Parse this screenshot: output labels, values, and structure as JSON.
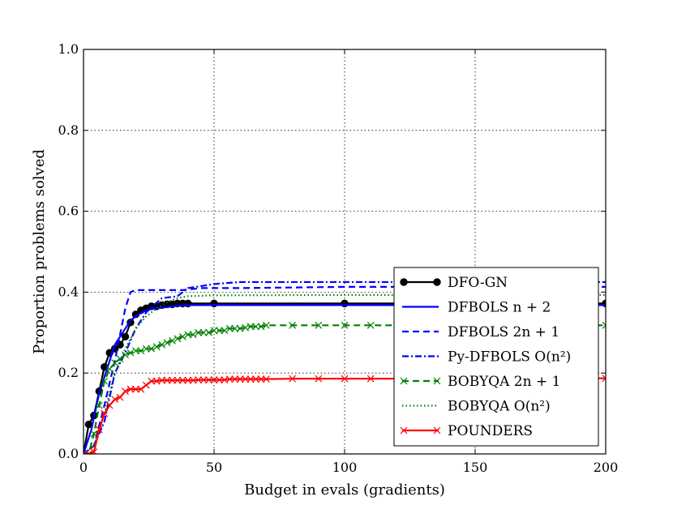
{
  "chart_data": {
    "type": "line",
    "title": "",
    "xlabel": "Budget in evals (gradients)",
    "ylabel": "Proportion problems solved",
    "xlim": [
      0,
      200
    ],
    "ylim": [
      0,
      1.0
    ],
    "x_ticks": [
      "0",
      "50",
      "100",
      "150",
      "200"
    ],
    "y_ticks": [
      "0.0",
      "0.2",
      "0.4",
      "0.6",
      "0.8",
      "1.0"
    ],
    "x_tick_values": [
      0,
      50,
      100,
      150,
      200
    ],
    "y_tick_values": [
      0,
      0.2,
      0.4,
      0.6,
      0.8,
      1.0
    ],
    "grid": true,
    "legend_position": "lower-right",
    "series": [
      {
        "name": "DFO-GN",
        "color": "#000000",
        "style": "solid",
        "marker": "circle",
        "x": [
          0,
          2,
          4,
          6,
          8,
          10,
          12,
          14,
          16,
          18,
          20,
          22,
          24,
          26,
          28,
          30,
          32,
          34,
          36,
          38,
          40,
          50,
          100,
          150,
          200
        ],
        "y": [
          0.0,
          0.073,
          0.095,
          0.155,
          0.215,
          0.25,
          0.26,
          0.27,
          0.29,
          0.325,
          0.345,
          0.355,
          0.36,
          0.365,
          0.365,
          0.368,
          0.37,
          0.37,
          0.372,
          0.372,
          0.372,
          0.372,
          0.372,
          0.372,
          0.372
        ]
      },
      {
        "name": "DFBOLS n+2",
        "color": "#0000ff",
        "style": "solid",
        "marker": "none",
        "x": [
          0,
          3,
          6,
          9,
          12,
          15,
          18,
          21,
          24,
          27,
          30,
          33,
          36,
          39,
          50,
          100,
          150,
          200
        ],
        "y": [
          0.0,
          0.06,
          0.15,
          0.21,
          0.27,
          0.3,
          0.33,
          0.345,
          0.355,
          0.36,
          0.362,
          0.364,
          0.366,
          0.368,
          0.368,
          0.368,
          0.368,
          0.368
        ]
      },
      {
        "name": "DFBOLS 2n+1",
        "color": "#0000ff",
        "style": "dashed",
        "marker": "none",
        "x": [
          0,
          4,
          8,
          12,
          16,
          18,
          20,
          30,
          38,
          45,
          60,
          100,
          150,
          200
        ],
        "y": [
          0.0,
          0.02,
          0.12,
          0.23,
          0.36,
          0.4,
          0.405,
          0.405,
          0.405,
          0.41,
          0.41,
          0.413,
          0.413,
          0.413
        ]
      },
      {
        "name": "Py-DFBOLS O(n^2)",
        "color": "#0000ff",
        "style": "dashdot",
        "marker": "none",
        "x": [
          0,
          4,
          8,
          12,
          16,
          20,
          24,
          30,
          36,
          40,
          45,
          50,
          60,
          100,
          150,
          200
        ],
        "y": [
          0.0,
          0.02,
          0.08,
          0.2,
          0.25,
          0.31,
          0.35,
          0.385,
          0.39,
          0.41,
          0.415,
          0.42,
          0.425,
          0.425,
          0.425,
          0.425
        ]
      },
      {
        "name": "BOBYQA 2n+1",
        "color": "#008000",
        "style": "dashed",
        "marker": "x",
        "x": [
          0,
          2,
          4,
          6,
          8,
          10,
          12,
          14,
          16,
          18,
          20,
          22,
          24,
          26,
          28,
          30,
          32,
          34,
          36,
          38,
          40,
          42,
          44,
          46,
          48,
          50,
          52,
          54,
          56,
          58,
          60,
          62,
          64,
          66,
          68,
          70,
          80,
          90,
          100,
          110,
          120,
          130,
          140,
          150,
          160,
          170,
          180,
          190,
          200
        ],
        "y": [
          0.0,
          0.0,
          0.05,
          0.12,
          0.18,
          0.21,
          0.225,
          0.235,
          0.245,
          0.25,
          0.255,
          0.255,
          0.26,
          0.26,
          0.265,
          0.27,
          0.275,
          0.28,
          0.285,
          0.29,
          0.295,
          0.295,
          0.3,
          0.3,
          0.3,
          0.305,
          0.305,
          0.305,
          0.31,
          0.31,
          0.31,
          0.312,
          0.315,
          0.315,
          0.315,
          0.318,
          0.318,
          0.318,
          0.318,
          0.318,
          0.318,
          0.318,
          0.318,
          0.318,
          0.318,
          0.318,
          0.318,
          0.318,
          0.318
        ]
      },
      {
        "name": "BOBYQA O(n^2)",
        "color": "#008000",
        "style": "dotted",
        "marker": "none",
        "x": [
          0,
          4,
          8,
          12,
          16,
          20,
          24,
          28,
          32,
          36,
          40,
          50,
          100,
          150,
          200
        ],
        "y": [
          0.0,
          0.02,
          0.1,
          0.2,
          0.26,
          0.31,
          0.34,
          0.36,
          0.375,
          0.385,
          0.39,
          0.392,
          0.393,
          0.393,
          0.393
        ]
      },
      {
        "name": "POUNDERS",
        "color": "#ff0000",
        "style": "solid",
        "marker": "x",
        "x": [
          0,
          2,
          4,
          6,
          8,
          10,
          12,
          14,
          16,
          18,
          20,
          22,
          24,
          26,
          28,
          30,
          32,
          34,
          36,
          38,
          40,
          42,
          44,
          46,
          48,
          50,
          52,
          54,
          56,
          58,
          60,
          62,
          64,
          66,
          68,
          70,
          80,
          90,
          100,
          110,
          120,
          130,
          140,
          150,
          160,
          170,
          180,
          190,
          200
        ],
        "y": [
          0.0,
          0.0,
          0.005,
          0.06,
          0.1,
          0.12,
          0.135,
          0.14,
          0.155,
          0.16,
          0.16,
          0.16,
          0.17,
          0.18,
          0.18,
          0.182,
          0.182,
          0.182,
          0.182,
          0.182,
          0.182,
          0.182,
          0.183,
          0.183,
          0.183,
          0.183,
          0.183,
          0.183,
          0.185,
          0.185,
          0.185,
          0.185,
          0.185,
          0.185,
          0.185,
          0.185,
          0.186,
          0.186,
          0.186,
          0.186,
          0.186,
          0.187,
          0.187,
          0.187,
          0.187,
          0.187,
          0.187,
          0.187,
          0.187
        ]
      }
    ],
    "legend": [
      {
        "label": "DFO-GN",
        "series": 0
      },
      {
        "label": "DFBOLS n + 2",
        "series": 1
      },
      {
        "label": "DFBOLS 2n + 1",
        "series": 2
      },
      {
        "label": "Py-DFBOLS O(n²)",
        "series": 3
      },
      {
        "label": "BOBYQA 2n + 1",
        "series": 4
      },
      {
        "label": "BOBYQA O(n²)",
        "series": 5
      },
      {
        "label": "POUNDERS",
        "series": 6
      }
    ]
  }
}
